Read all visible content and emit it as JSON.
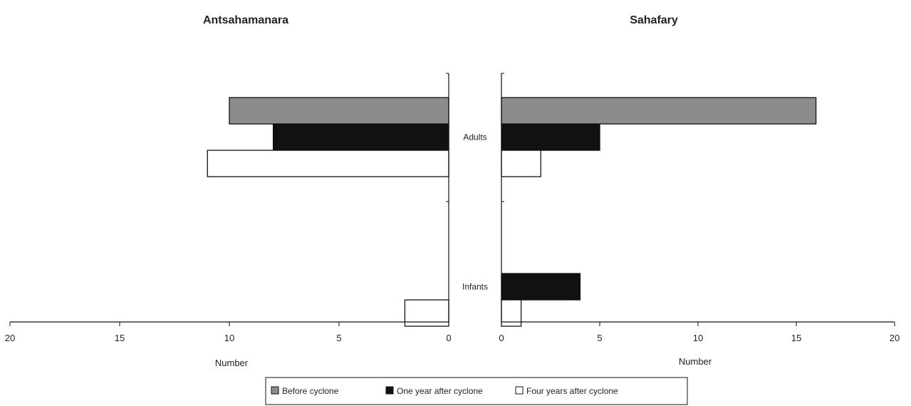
{
  "chart_data": [
    {
      "type": "bar",
      "orientation": "horizontal",
      "direction": "right-to-left",
      "title": "Antsahamanara",
      "categories": [
        "Adults",
        "Infants"
      ],
      "series": [
        {
          "name": "Before cyclone",
          "values": [
            10,
            0
          ]
        },
        {
          "name": "One year after cyclone",
          "values": [
            8,
            0
          ]
        },
        {
          "name": "Four years after cyclone",
          "values": [
            11,
            2
          ]
        }
      ],
      "xlabel": "Number",
      "xlim": [
        0,
        20
      ],
      "xticks": [
        "20",
        "15",
        "10",
        "5",
        "0"
      ],
      "grid": false
    },
    {
      "type": "bar",
      "orientation": "horizontal",
      "direction": "left-to-right",
      "title": "Sahafary",
      "categories": [
        "Adults",
        "Infants"
      ],
      "series": [
        {
          "name": "Before cyclone",
          "values": [
            16,
            0
          ]
        },
        {
          "name": "One year after cyclone",
          "values": [
            5,
            4
          ]
        },
        {
          "name": "Four years after cyclone",
          "values": [
            2,
            1
          ]
        }
      ],
      "xlabel": "Number",
      "xlim": [
        0,
        20
      ],
      "xticks": [
        "0",
        "5",
        "10",
        "15",
        "20"
      ],
      "grid": false
    }
  ],
  "legend": {
    "placement": "bottom-center",
    "items": [
      {
        "label": "Before cyclone",
        "color": "#8c8c8c"
      },
      {
        "label": "One year after cyclone",
        "color": "#111111"
      },
      {
        "label": "Four years after cyclone",
        "color": "#ffffff"
      }
    ]
  }
}
